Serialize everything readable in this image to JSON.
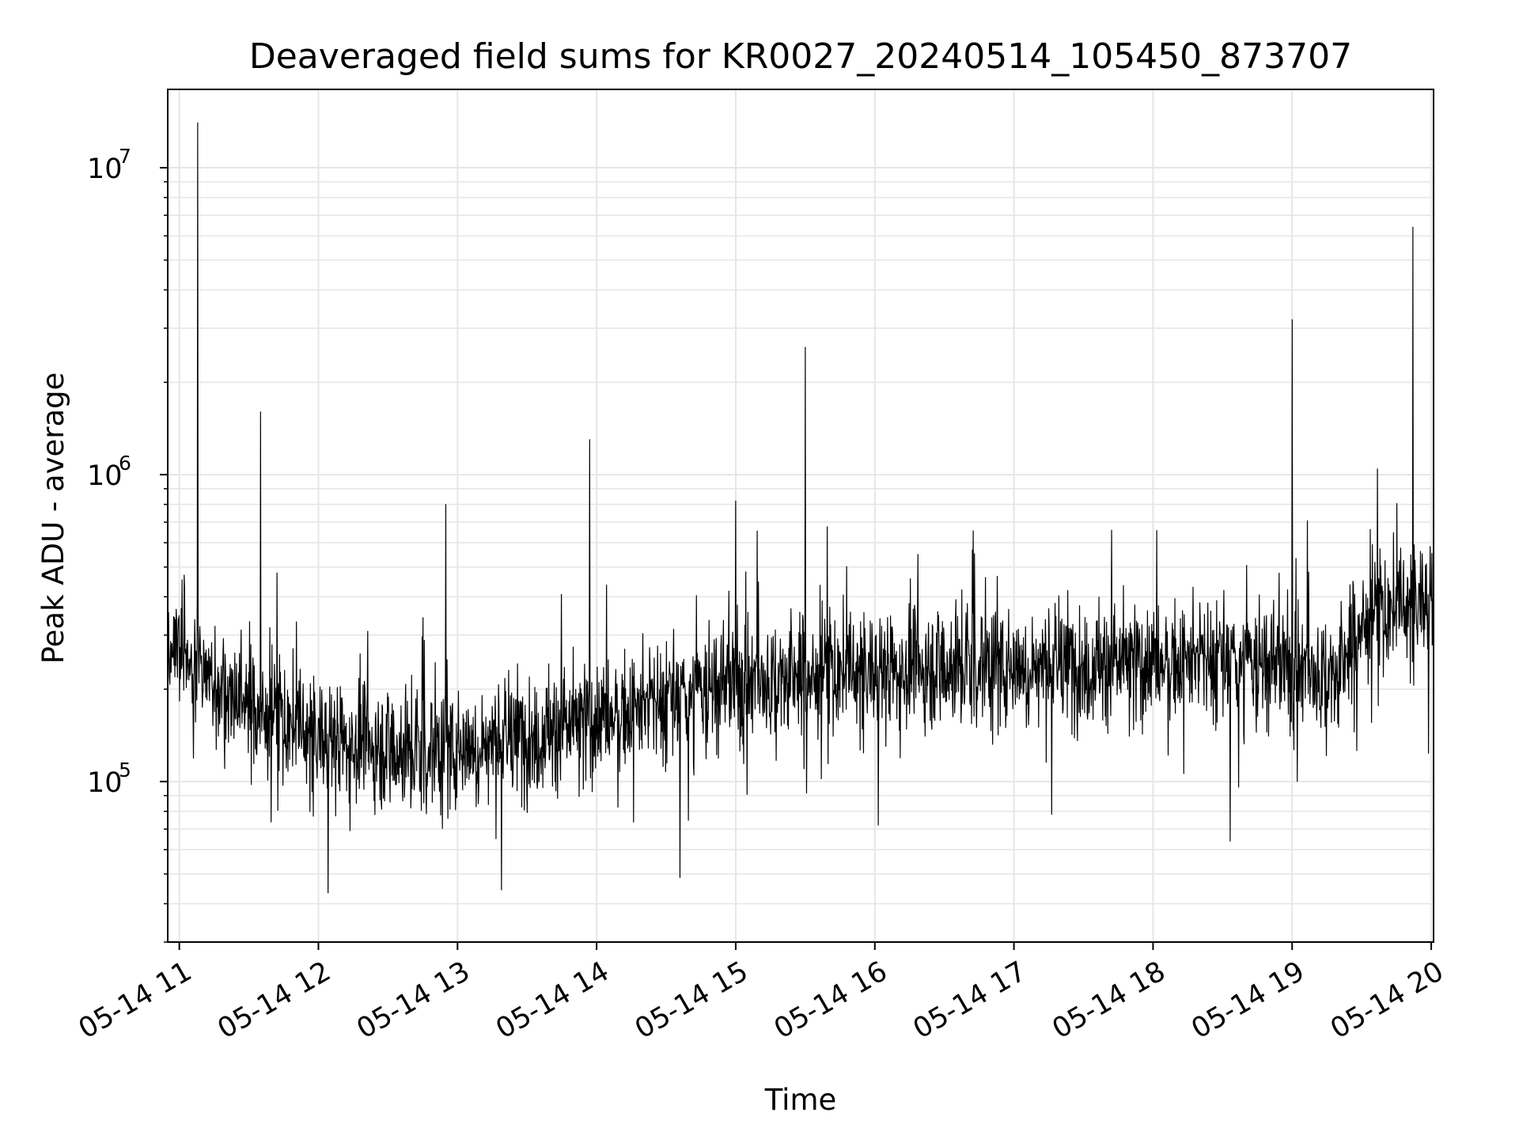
{
  "chart_data": {
    "type": "line",
    "title": "Deaveraged field sums for KR0027_20240514_105450_873707",
    "xlabel": "Time",
    "ylabel": "Peak ADU - average",
    "yscale": "log",
    "grid": true,
    "legend": "none",
    "line_color": "#000000",
    "grid_color": "#e6e6e6",
    "xlim": [
      "2024-05-14 10:55",
      "2024-05-14 20:01"
    ],
    "ylim": [
      30000,
      18000000
    ],
    "x_ticks": [
      {
        "value": "2024-05-14 11:00",
        "label": "05-14 11"
      },
      {
        "value": "2024-05-14 12:00",
        "label": "05-14 12"
      },
      {
        "value": "2024-05-14 13:00",
        "label": "05-14 13"
      },
      {
        "value": "2024-05-14 14:00",
        "label": "05-14 14"
      },
      {
        "value": "2024-05-14 15:00",
        "label": "05-14 15"
      },
      {
        "value": "2024-05-14 16:00",
        "label": "05-14 16"
      },
      {
        "value": "2024-05-14 17:00",
        "label": "05-14 17"
      },
      {
        "value": "2024-05-14 18:00",
        "label": "05-14 18"
      },
      {
        "value": "2024-05-14 19:00",
        "label": "05-14 19"
      },
      {
        "value": "2024-05-14 20:00",
        "label": "05-14 20"
      }
    ],
    "y_ticks": [
      {
        "value": 100000,
        "base": "10",
        "exp": "5"
      },
      {
        "value": 1000000,
        "base": "10",
        "exp": "6"
      },
      {
        "value": 10000000,
        "base": "10",
        "exp": "7"
      }
    ],
    "series": [
      {
        "baseline": [
          [
            "2024-05-14 10:55",
            280000
          ],
          [
            "2024-05-14 11:15",
            210000
          ],
          [
            "2024-05-14 11:40",
            160000
          ],
          [
            "2024-05-14 12:00",
            140000
          ],
          [
            "2024-05-14 12:45",
            125000
          ],
          [
            "2024-05-14 13:30",
            140000
          ],
          [
            "2024-05-14 14:00",
            160000
          ],
          [
            "2024-05-14 14:30",
            180000
          ],
          [
            "2024-05-14 15:00",
            210000
          ],
          [
            "2024-05-14 15:30",
            220000
          ],
          [
            "2024-05-14 16:00",
            230000
          ],
          [
            "2024-05-14 16:30",
            240000
          ],
          [
            "2024-05-14 17:00",
            240000
          ],
          [
            "2024-05-14 17:30",
            240000
          ],
          [
            "2024-05-14 18:00",
            245000
          ],
          [
            "2024-05-14 18:30",
            245000
          ],
          [
            "2024-05-14 19:00",
            235000
          ],
          [
            "2024-05-14 19:20",
            220000
          ],
          [
            "2024-05-14 19:30",
            330000
          ],
          [
            "2024-05-14 20:01",
            400000
          ]
        ],
        "spikes": [
          [
            "2024-05-14 11:08",
            14000000
          ],
          [
            "2024-05-14 11:35",
            1600000
          ],
          [
            "2024-05-14 12:55",
            800000
          ],
          [
            "2024-05-14 13:57",
            1300000
          ],
          [
            "2024-05-14 15:00",
            820000
          ],
          [
            "2024-05-14 15:30",
            2600000
          ],
          [
            "2024-05-14 19:00",
            3200000
          ],
          [
            "2024-05-14 19:52",
            6400000
          ]
        ]
      }
    ]
  }
}
